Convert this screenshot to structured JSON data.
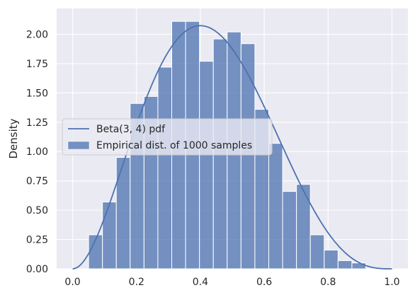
{
  "chart_data": {
    "type": "bar",
    "title": "",
    "xlabel": "",
    "ylabel": "Density",
    "xlim": [
      -0.05,
      1.05
    ],
    "ylim": [
      0,
      2.22
    ],
    "grid": true,
    "legend_position": "center-left",
    "colors": {
      "background": "#eaeaf2",
      "bar": "#4c72b0",
      "line": "#4c72b0",
      "grid": "#ffffff"
    },
    "xticks": [
      "0.0",
      "0.2",
      "0.4",
      "0.6",
      "0.8",
      "1.0"
    ],
    "xtick_values": [
      0.0,
      0.2,
      0.4,
      0.6,
      0.8,
      1.0
    ],
    "yticks": [
      "0.00",
      "0.25",
      "0.50",
      "0.75",
      "1.00",
      "1.25",
      "1.50",
      "1.75",
      "2.00"
    ],
    "ytick_values": [
      0.0,
      0.25,
      0.5,
      0.75,
      1.0,
      1.25,
      1.5,
      1.75,
      2.0
    ],
    "histogram": {
      "name": "Empirical dist. of 1000 samples",
      "bin_edges": [
        0.05,
        0.0934,
        0.1368,
        0.1802,
        0.2236,
        0.267,
        0.3104,
        0.3538,
        0.3972,
        0.4406,
        0.484,
        0.5274,
        0.5708,
        0.6142,
        0.6576,
        0.701,
        0.7444,
        0.7878,
        0.8312,
        0.8746,
        0.918
      ],
      "values": [
        0.29,
        0.57,
        0.95,
        1.41,
        1.47,
        1.72,
        2.11,
        2.11,
        1.77,
        1.96,
        2.02,
        1.92,
        1.36,
        1.07,
        0.66,
        0.72,
        0.29,
        0.16,
        0.07,
        0.05
      ]
    },
    "pdf_line": {
      "name": "Beta(3, 4) pdf",
      "alpha": 3,
      "beta": 4
    }
  }
}
